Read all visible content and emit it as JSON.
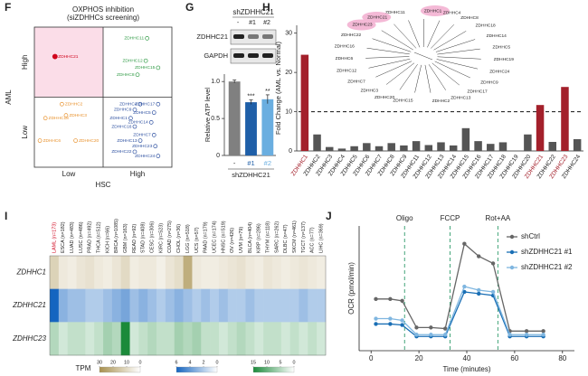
{
  "chart_data": [
    {
      "panel": "F",
      "type": "quadrant",
      "title": "OXPHOS inhibition",
      "subtitle": "(siZDHHCs screening)",
      "xlabel": "HSC",
      "ylabel": "AML",
      "xlevels": [
        "Low",
        "High"
      ],
      "ylevels": [
        "Low",
        "High"
      ],
      "xlim": [
        0,
        100
      ],
      "ylim": [
        0,
        100
      ],
      "highlight_color": "#fbdde8",
      "series": [
        {
          "color": "#d0021b",
          "marker": "filled",
          "labels": [
            "ZDHHC21"
          ],
          "x": [
            15
          ],
          "y": [
            79
          ]
        },
        {
          "color": "#2e9a44",
          "marker": "open",
          "labels": [
            "ZDHHC11",
            "ZDHHC12",
            "ZDHHC15",
            "ZDHHC8"
          ],
          "x": [
            82,
            81,
            90,
            75
          ],
          "y": [
            92,
            76,
            71,
            66
          ]
        },
        {
          "color": "#e8912c",
          "marker": "open",
          "labels": [
            "ZDHHC2",
            "ZDHHC18",
            "ZDHHC3",
            "ZDHHC6",
            "ZDHHC20"
          ],
          "x": [
            20,
            8,
            23,
            4,
            30
          ],
          "y": [
            45,
            35,
            37,
            19,
            19
          ]
        },
        {
          "color": "#2c4fa0",
          "marker": "open",
          "labels": [
            "ZDHHC4",
            "ZDHHC17",
            "ZDHHC9",
            "ZDHHC5",
            "ZDHHC1",
            "ZDHHC14",
            "ZDHHC16",
            "ZDHHC7",
            "ZDHHC13",
            "ZDHHC22",
            "ZDHHC23",
            "ZDHHC24"
          ],
          "x": [
            77,
            90,
            73,
            87,
            70,
            85,
            73,
            87,
            77,
            73,
            88,
            90
          ],
          "y": [
            45,
            45,
            41,
            39,
            35,
            32,
            29,
            23,
            19,
            11,
            15,
            8
          ]
        }
      ]
    },
    {
      "panel": "G",
      "type": "blot",
      "title": "shZDHHC21",
      "lanes": [
        "-",
        "#1",
        "#2"
      ],
      "rows": [
        "ZDHHC21",
        "GAPDH"
      ]
    },
    {
      "type": "bar",
      "categories": [
        "-",
        "#1",
        "#2"
      ],
      "values": [
        1,
        0.72,
        0.76
      ],
      "errors": [
        0.02,
        0.03,
        0.06
      ],
      "colors": [
        "#808080",
        "#1f5fa8",
        "#6aaee0"
      ],
      "significance": [
        null,
        "***",
        "**"
      ],
      "xlabel": "shZDHHC21",
      "ylabel": "Relative ATP level",
      "ylim": [
        0,
        1.1
      ],
      "yticks": [
        0,
        0.5,
        {
          "value": 1,
          "label": "1.0"
        }
      ]
    },
    {
      "panel": "H",
      "type": "bar",
      "ylabel": "Fold Change (AML vs. Normal)",
      "categories": [
        "ZDHHC1",
        "ZDHHC2",
        "ZDHHC3",
        "ZDHHC4",
        "ZDHHC5",
        "ZDHHC6",
        "ZDHHC7",
        "ZDHHC8",
        "ZDHHC9",
        "ZDHHC11",
        "ZDHHC12",
        "ZDHHC13",
        "ZDHHC14",
        "ZDHHC15",
        "ZDHHC16",
        "ZDHHC17",
        "ZDHHC18",
        "ZDHHC19",
        "ZDHHC20",
        "ZDHHC21",
        "ZDHHC22",
        "ZDHHC23",
        "ZDHHC24"
      ],
      "values": [
        24.5,
        4.2,
        1,
        0.6,
        1.2,
        2,
        1.2,
        2,
        1.4,
        2.5,
        1.5,
        2.2,
        1.4,
        5.8,
        2.5,
        1.8,
        2.2,
        0,
        4.2,
        11.7,
        2.3,
        16.3,
        3
      ],
      "colors": [
        "#a3202b",
        "#555555",
        "#555555",
        "#555555",
        "#555555",
        "#555555",
        "#555555",
        "#555555",
        "#555555",
        "#555555",
        "#555555",
        "#555555",
        "#555555",
        "#555555",
        "#555555",
        "#555555",
        "#555555",
        "#555555",
        "#555555",
        "#a3202b",
        "#555555",
        "#a3202b",
        "#555555"
      ],
      "ylim": [
        0,
        32
      ],
      "yticks": [
        0,
        10,
        20,
        30
      ],
      "threshold": 10,
      "tree_highlight_color": "#f4b9d6",
      "tree_labels": [
        "ZDHHC11",
        "ZDHHC1",
        "ZDHHC4",
        "ZDHHC8",
        "ZDHHC18",
        "ZDHHC14",
        "ZDHHC5",
        "ZDHHC19",
        "ZDHHC24",
        "ZDHHC9",
        "ZDHHC17",
        "ZDHHC13",
        "ZDHHC2",
        "ZDHHC15",
        "ZDHHC20",
        "ZDHHC3",
        "ZDHHC7",
        "ZDHHC12",
        "ZDHHC6",
        "ZDHHC16",
        "ZDHHC22",
        "ZDHHC23",
        "ZDHHC21"
      ]
    },
    {
      "panel": "I",
      "type": "heatmap",
      "legend_title": "TPM",
      "reference_color": "#d0021b",
      "columns": [
        "LAML (n=173)",
        "ESCA (n=182)",
        "LUAD (n=483)",
        "LUSC (n=486)",
        "PRAD (n=492)",
        "THCA (n=512)",
        "KICH (n=66)",
        "BRCA (n=1085)",
        "GBM (n=163)",
        "READ (n=92)",
        "STAD (n=408)",
        "CESC (n=306)",
        "KIRC (n=523)",
        "COAD (n=275)",
        "CHOL (n=36)",
        "LGG (n=518)",
        "UCS (n=57)",
        "PAAD (n=179)",
        "UCEC (n=174)",
        "HNSC (n=519)",
        "OV (n=426)",
        "UVM (n=79)",
        "BLCA (n=404)",
        "KIRP (n=286)",
        "THYM (n=118)",
        "SARC (n=262)",
        "DLBC (n=47)",
        "SKCM (n=461)",
        "TGCT (n=137)",
        "ACC (n=77)",
        "LIHC (n=369)"
      ],
      "rows": [
        "ZDHHC1",
        "ZDHHC21",
        "ZDHHC23"
      ],
      "values": [
        [
          12,
          6,
          5,
          7,
          8,
          6,
          5,
          7,
          10,
          5,
          6,
          6,
          4,
          7,
          9,
          22,
          6,
          5,
          5,
          6,
          7,
          8,
          6,
          5,
          7,
          6,
          5,
          6,
          7,
          6,
          5
        ],
        [
          6,
          3,
          2.5,
          2.5,
          2,
          2,
          2.5,
          3,
          3.5,
          2.5,
          3,
          2.5,
          2,
          2.5,
          3,
          2.5,
          2,
          2.5,
          2,
          2.5,
          2,
          2,
          2.5,
          2,
          2,
          2,
          2,
          2,
          2.5,
          2,
          2
        ],
        [
          5,
          3,
          4,
          4,
          3,
          4,
          6,
          5,
          15,
          3,
          4,
          5,
          4,
          4,
          6,
          5,
          6,
          4,
          4,
          3,
          4,
          5,
          4,
          3,
          4,
          4,
          3,
          4,
          3,
          4,
          3
        ]
      ],
      "scales": [
        {
          "color": "#a8904e",
          "lim": [
            0,
            30
          ],
          "ticks": [
            30,
            20,
            10,
            0
          ]
        },
        {
          "color": "#1565c0",
          "lim": [
            0,
            6
          ],
          "ticks": [
            6,
            4,
            2,
            0
          ]
        },
        {
          "color": "#1b8a3a",
          "lim": [
            0,
            15
          ],
          "ticks": [
            15,
            10,
            5,
            0
          ]
        }
      ]
    },
    {
      "panel": "J",
      "type": "line",
      "xlabel": "Time (minutes)",
      "ylabel": "OCR (pmol/min)",
      "xlim": [
        -5,
        85
      ],
      "xticks": [
        0,
        20,
        40,
        60,
        80
      ],
      "ylim": [
        0,
        350
      ],
      "x": [
        2,
        8,
        13,
        19,
        25,
        31,
        39,
        45,
        51,
        58,
        65,
        72
      ],
      "events": [
        {
          "label": "Oligo",
          "x": 14
        },
        {
          "label": "FCCP",
          "x": 33
        },
        {
          "label": "Rot+AA",
          "x": 53
        }
      ],
      "event_color": "#2e9a6a",
      "series": [
        {
          "name": "shCtrl",
          "color": "#666666",
          "values": [
            145,
            145,
            140,
            65,
            65,
            62,
            300,
            265,
            245,
            55,
            55,
            55
          ]
        },
        {
          "name": "shZDHHC21 #1",
          "color": "#1a6fb5",
          "values": [
            75,
            75,
            72,
            40,
            40,
            40,
            165,
            160,
            155,
            40,
            40,
            40
          ]
        },
        {
          "name": "shZDHHC21 #2",
          "color": "#7fb6e0",
          "values": [
            90,
            90,
            85,
            45,
            45,
            45,
            180,
            170,
            165,
            45,
            45,
            45
          ]
        }
      ]
    }
  ]
}
